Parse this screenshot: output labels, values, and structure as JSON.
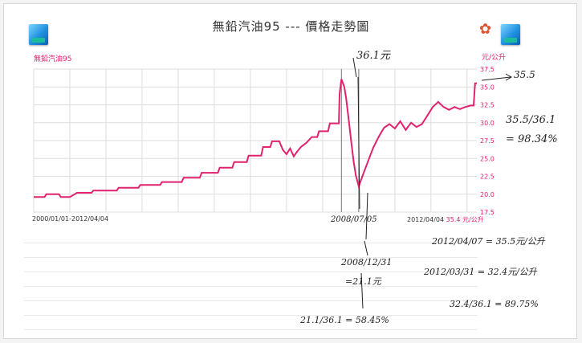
{
  "title": "無鉛汽油95 --- 價格走勢圖",
  "series_label": "無鉛汽油95",
  "unit_label": "元/公升",
  "date_range_left": "2000/01/01-2012/04/04",
  "date_range_right_prefix": "2012/04/04",
  "date_range_right_accent": "35.4 元/公升",
  "icons": {
    "left_app": "app-icon",
    "right_app": "app-icon",
    "flower": "flower-icon"
  },
  "annotations": {
    "peak_value": "36.1元",
    "latest_value": "35.5",
    "ratio_fraction": "35.5/36.1",
    "ratio_result": "= 98.34%",
    "peak_date": "2008/07/05",
    "trough_date": "2008/12/31",
    "trough_value": "=21.1元",
    "trough_ratio": "21.1/36.1 = 58.45%",
    "current_price_line": "2012/04/07 = 35.5元/公升",
    "prev_price_line": "2012/03/31 = 32.4元/公升",
    "prev_ratio_line": "32.4/36.1 = 89.75%"
  },
  "colors": {
    "line": "#e0226f",
    "grid": "#dddddd",
    "axis_text": "#e02070",
    "handwriting": "#222222"
  },
  "chart_data": {
    "type": "line",
    "title": "無鉛汽油95 --- 價格走勢圖",
    "ylabel": "元/公升",
    "yticks": [
      17.5,
      20.0,
      22.5,
      25.0,
      27.5,
      30.0,
      32.5,
      35.0,
      37.5
    ],
    "ylim": [
      17.5,
      37.5
    ],
    "xlim": [
      2000.0,
      2012.27
    ],
    "grid": true,
    "series": [
      {
        "name": "無鉛汽油95",
        "points": [
          [
            2000.0,
            19.6
          ],
          [
            2000.3,
            19.6
          ],
          [
            2000.35,
            20.0
          ],
          [
            2000.7,
            20.0
          ],
          [
            2000.75,
            19.6
          ],
          [
            2001.0,
            19.6
          ],
          [
            2001.2,
            20.2
          ],
          [
            2001.6,
            20.2
          ],
          [
            2001.65,
            20.5
          ],
          [
            2002.3,
            20.5
          ],
          [
            2002.35,
            20.9
          ],
          [
            2002.9,
            20.9
          ],
          [
            2002.95,
            21.3
          ],
          [
            2003.5,
            21.3
          ],
          [
            2003.55,
            21.7
          ],
          [
            2004.1,
            21.7
          ],
          [
            2004.15,
            22.3
          ],
          [
            2004.6,
            22.3
          ],
          [
            2004.65,
            23.0
          ],
          [
            2005.1,
            23.0
          ],
          [
            2005.15,
            23.7
          ],
          [
            2005.5,
            23.7
          ],
          [
            2005.55,
            24.5
          ],
          [
            2005.9,
            24.5
          ],
          [
            2005.95,
            25.4
          ],
          [
            2006.3,
            25.4
          ],
          [
            2006.35,
            26.6
          ],
          [
            2006.55,
            26.6
          ],
          [
            2006.6,
            27.4
          ],
          [
            2006.8,
            27.4
          ],
          [
            2006.9,
            26.2
          ],
          [
            2007.0,
            25.6
          ],
          [
            2007.1,
            26.4
          ],
          [
            2007.2,
            25.3
          ],
          [
            2007.3,
            26.0
          ],
          [
            2007.4,
            26.6
          ],
          [
            2007.55,
            27.2
          ],
          [
            2007.7,
            28.0
          ],
          [
            2007.85,
            28.0
          ],
          [
            2007.9,
            28.8
          ],
          [
            2008.15,
            28.8
          ],
          [
            2008.2,
            29.9
          ],
          [
            2008.45,
            29.9
          ],
          [
            2008.47,
            34.0
          ],
          [
            2008.52,
            36.1
          ],
          [
            2008.6,
            35.0
          ],
          [
            2008.65,
            33.5
          ],
          [
            2008.72,
            30.5
          ],
          [
            2008.8,
            27.0
          ],
          [
            2008.86,
            24.5
          ],
          [
            2008.92,
            22.6
          ],
          [
            2009.0,
            21.1
          ],
          [
            2009.1,
            22.5
          ],
          [
            2009.25,
            24.5
          ],
          [
            2009.4,
            26.5
          ],
          [
            2009.55,
            28.0
          ],
          [
            2009.7,
            29.3
          ],
          [
            2009.85,
            29.8
          ],
          [
            2010.0,
            29.2
          ],
          [
            2010.15,
            30.2
          ],
          [
            2010.3,
            29.0
          ],
          [
            2010.45,
            30.0
          ],
          [
            2010.6,
            29.4
          ],
          [
            2010.75,
            29.8
          ],
          [
            2010.9,
            31.0
          ],
          [
            2011.05,
            32.2
          ],
          [
            2011.2,
            32.9
          ],
          [
            2011.35,
            32.2
          ],
          [
            2011.5,
            31.8
          ],
          [
            2011.65,
            32.2
          ],
          [
            2011.8,
            31.9
          ],
          [
            2011.95,
            32.2
          ],
          [
            2012.1,
            32.4
          ],
          [
            2012.18,
            32.4
          ],
          [
            2012.22,
            35.5
          ],
          [
            2012.27,
            35.5
          ]
        ]
      }
    ],
    "reference_lines": [
      {
        "label": "2008/07/05",
        "x": 2008.52
      },
      {
        "label": "2008/12/31",
        "x": 2009.0
      }
    ]
  }
}
